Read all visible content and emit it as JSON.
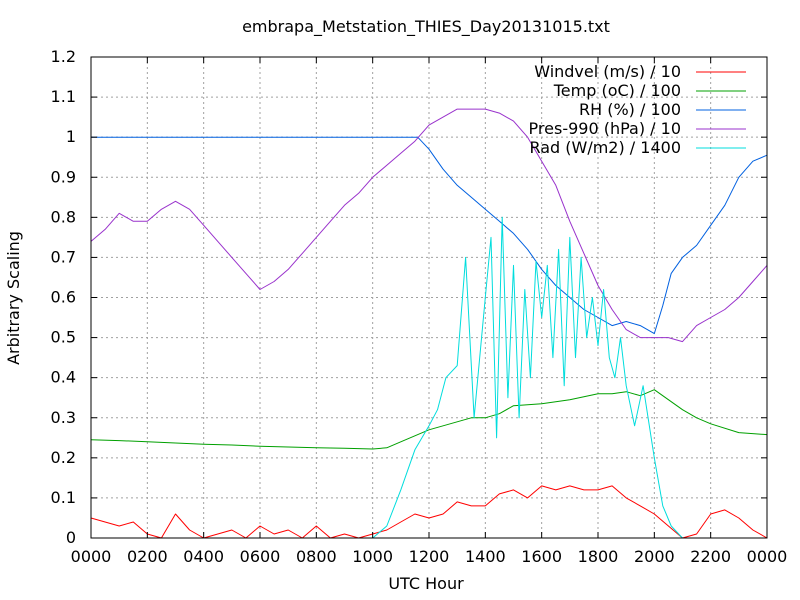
{
  "chart_data": {
    "type": "line",
    "title": "embrapa_Metstation_THIES_Day20131015.txt",
    "xlabel": "UTC Hour",
    "ylabel": "Arbitrary Scaling",
    "xlim": [
      0,
      24
    ],
    "ylim": [
      0,
      1.2
    ],
    "x_ticks": [
      "0000",
      "0200",
      "0400",
      "0600",
      "0800",
      "1000",
      "1200",
      "1400",
      "1600",
      "1800",
      "2000",
      "2200",
      "0000"
    ],
    "y_ticks": [
      "0",
      "0.1",
      "0.2",
      "0.3",
      "0.4",
      "0.5",
      "0.6",
      "0.7",
      "0.8",
      "0.9",
      "1",
      "1.1",
      "1.2"
    ],
    "grid": true,
    "legend_position": "top-right",
    "series": [
      {
        "name": "Windvel (m/s) / 10",
        "color": "#ff0000",
        "x": [
          0,
          0.5,
          1,
          1.5,
          2,
          2.5,
          3,
          3.5,
          4,
          4.5,
          5,
          5.5,
          6,
          6.5,
          7,
          7.5,
          8,
          8.5,
          9,
          9.5,
          10,
          10.5,
          11,
          11.5,
          12,
          12.5,
          13,
          13.5,
          14,
          14.5,
          15,
          15.5,
          16,
          16.5,
          17,
          17.5,
          18,
          18.5,
          19,
          19.5,
          20,
          20.5,
          21,
          21.5,
          22,
          22.5,
          23,
          23.5,
          24
        ],
        "y": [
          0.05,
          0.04,
          0.03,
          0.04,
          0.01,
          0.0,
          0.06,
          0.02,
          0.0,
          0.01,
          0.02,
          0.0,
          0.03,
          0.01,
          0.02,
          0.0,
          0.03,
          0.0,
          0.01,
          0.0,
          0.01,
          0.02,
          0.04,
          0.06,
          0.05,
          0.06,
          0.09,
          0.08,
          0.08,
          0.11,
          0.12,
          0.1,
          0.13,
          0.12,
          0.13,
          0.12,
          0.12,
          0.13,
          0.1,
          0.08,
          0.06,
          0.03,
          0.0,
          0.01,
          0.06,
          0.07,
          0.05,
          0.02,
          0.0
        ]
      },
      {
        "name": "Temp (oC) / 100",
        "color": "#00a000",
        "x": [
          0,
          1,
          2,
          3,
          4,
          5,
          6,
          7,
          8,
          9,
          10,
          10.5,
          11,
          11.5,
          12,
          12.5,
          13,
          13.5,
          14,
          14.5,
          15,
          16,
          17,
          18,
          18.5,
          19,
          19.5,
          20,
          20.5,
          21,
          21.5,
          22,
          23,
          24
        ],
        "y": [
          0.245,
          0.243,
          0.24,
          0.237,
          0.234,
          0.232,
          0.229,
          0.227,
          0.225,
          0.224,
          0.222,
          0.225,
          0.24,
          0.255,
          0.27,
          0.28,
          0.29,
          0.3,
          0.3,
          0.31,
          0.33,
          0.335,
          0.345,
          0.36,
          0.36,
          0.365,
          0.355,
          0.37,
          0.345,
          0.32,
          0.3,
          0.285,
          0.263,
          0.258
        ]
      },
      {
        "name": "RH (%) / 100",
        "color": "#0060e0",
        "x": [
          0,
          1,
          2,
          3,
          4,
          5,
          6,
          7,
          8,
          9,
          10,
          10.5,
          11,
          11.3,
          11.6,
          12,
          12.5,
          13,
          13.5,
          14,
          14.5,
          15,
          15.5,
          16,
          16.5,
          17,
          17.5,
          18,
          18.5,
          19,
          19.5,
          20,
          20.3,
          20.6,
          21,
          21.5,
          22,
          22.5,
          23,
          23.5,
          24
        ],
        "y": [
          1.0,
          1.0,
          1.0,
          1.0,
          1.0,
          1.0,
          1.0,
          1.0,
          1.0,
          1.0,
          1.0,
          1.0,
          1.0,
          1.0,
          1.0,
          0.97,
          0.92,
          0.88,
          0.85,
          0.82,
          0.79,
          0.76,
          0.72,
          0.67,
          0.63,
          0.6,
          0.57,
          0.55,
          0.53,
          0.54,
          0.53,
          0.51,
          0.58,
          0.66,
          0.7,
          0.73,
          0.78,
          0.83,
          0.9,
          0.94,
          0.955
        ]
      },
      {
        "name": "Pres-990 (hPa) / 10",
        "color": "#9932cc",
        "x": [
          0,
          0.5,
          1,
          1.5,
          2,
          2.5,
          3,
          3.5,
          4,
          4.5,
          5,
          5.5,
          6,
          6.5,
          7,
          7.5,
          8,
          8.5,
          9,
          9.5,
          10,
          10.5,
          11,
          11.5,
          12,
          12.5,
          13,
          13.5,
          14,
          14.5,
          15,
          15.5,
          16,
          16.5,
          17,
          17.5,
          18,
          18.5,
          19,
          19.5,
          20,
          20.5,
          21,
          21.5,
          22,
          22.5,
          23,
          23.5,
          24
        ],
        "y": [
          0.74,
          0.77,
          0.81,
          0.79,
          0.79,
          0.82,
          0.84,
          0.82,
          0.78,
          0.74,
          0.7,
          0.66,
          0.62,
          0.64,
          0.67,
          0.71,
          0.75,
          0.79,
          0.83,
          0.86,
          0.9,
          0.93,
          0.96,
          0.99,
          1.03,
          1.05,
          1.07,
          1.07,
          1.07,
          1.06,
          1.04,
          1.0,
          0.94,
          0.88,
          0.79,
          0.71,
          0.63,
          0.57,
          0.52,
          0.5,
          0.5,
          0.5,
          0.49,
          0.53,
          0.55,
          0.57,
          0.6,
          0.64,
          0.68
        ]
      },
      {
        "name": "Rad (W/m2) / 1400",
        "color": "#00dddd",
        "x": [
          0,
          2,
          4,
          6,
          8,
          9,
          10,
          10.5,
          11,
          11.5,
          12,
          12.3,
          12.6,
          13,
          13.3,
          13.6,
          14,
          14.2,
          14.4,
          14.6,
          14.8,
          15,
          15.2,
          15.4,
          15.6,
          15.8,
          16,
          16.2,
          16.4,
          16.6,
          16.8,
          17,
          17.2,
          17.4,
          17.6,
          17.8,
          18,
          18.2,
          18.4,
          18.6,
          18.8,
          19,
          19.3,
          19.6,
          20,
          20.3,
          20.6,
          21,
          21.5,
          22,
          23,
          24
        ],
        "y": [
          0.0,
          0.0,
          0.0,
          0.0,
          0.0,
          0.0,
          0.0,
          0.03,
          0.12,
          0.22,
          0.28,
          0.32,
          0.4,
          0.43,
          0.7,
          0.3,
          0.6,
          0.75,
          0.25,
          0.8,
          0.35,
          0.68,
          0.3,
          0.62,
          0.4,
          0.69,
          0.55,
          0.68,
          0.45,
          0.72,
          0.38,
          0.75,
          0.45,
          0.7,
          0.5,
          0.6,
          0.48,
          0.62,
          0.45,
          0.4,
          0.5,
          0.38,
          0.28,
          0.38,
          0.2,
          0.08,
          0.03,
          0.0,
          0.0,
          0.0,
          0.0,
          0.0
        ]
      }
    ]
  }
}
